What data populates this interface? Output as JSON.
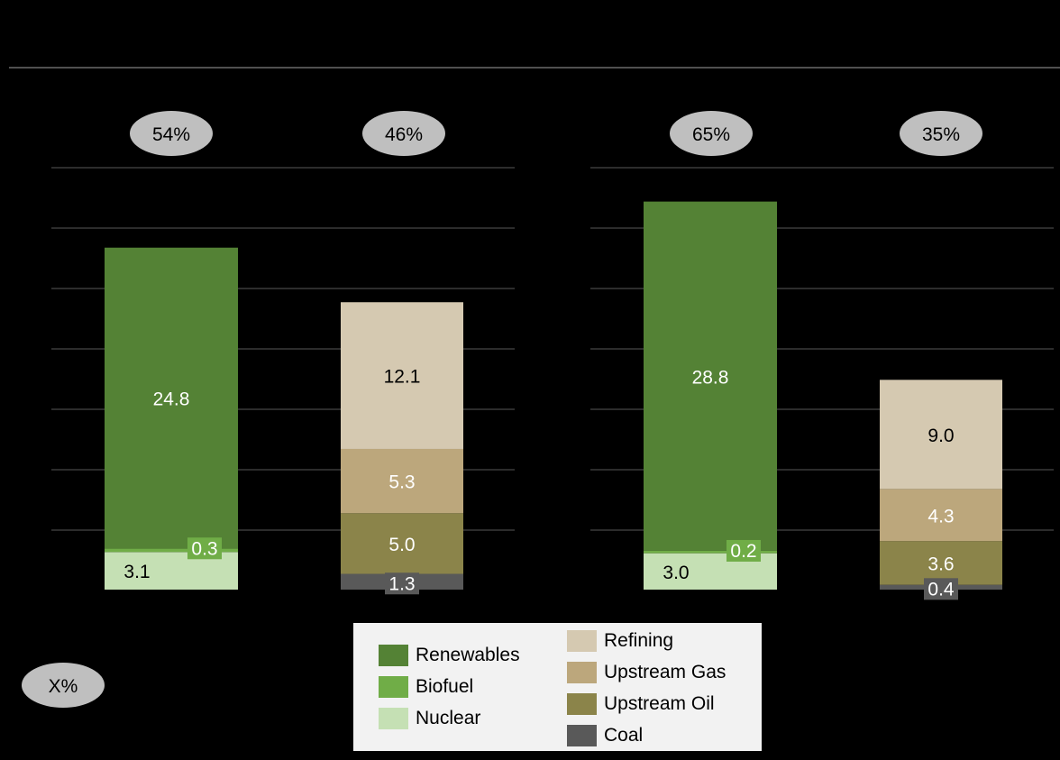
{
  "chart_data": {
    "type": "bar",
    "stacked": true,
    "grid": true,
    "legend_position": "bottom",
    "groups": [
      {
        "share_labels": [
          "54%",
          "46%"
        ]
      },
      {
        "share_labels": [
          "65%",
          "35%"
        ]
      }
    ],
    "bars": [
      {
        "group": 0,
        "segments": [
          {
            "series": "Nuclear",
            "value": 3.1,
            "label": "3.1"
          },
          {
            "series": "Biofuel",
            "value": 0.3,
            "label": "0.3"
          },
          {
            "series": "Renewables",
            "value": 24.8,
            "label": "24.8"
          }
        ]
      },
      {
        "group": 0,
        "segments": [
          {
            "series": "Coal",
            "value": 1.3,
            "label": "1.3"
          },
          {
            "series": "Upstream Oil",
            "value": 5.0,
            "label": "5.0"
          },
          {
            "series": "Upstream Gas",
            "value": 5.3,
            "label": "5.3"
          },
          {
            "series": "Refining",
            "value": 12.1,
            "label": "12.1"
          }
        ]
      },
      {
        "group": 1,
        "segments": [
          {
            "series": "Nuclear",
            "value": 3.0,
            "label": "3.0"
          },
          {
            "series": "Biofuel",
            "value": 0.2,
            "label": "0.2"
          },
          {
            "series": "Renewables",
            "value": 28.8,
            "label": "28.8"
          }
        ]
      },
      {
        "group": 1,
        "segments": [
          {
            "series": "Coal",
            "value": 0.4,
            "label": "0.4"
          },
          {
            "series": "Upstream Oil",
            "value": 3.6,
            "label": "3.6"
          },
          {
            "series": "Upstream Gas",
            "value": 4.3,
            "label": "4.3"
          },
          {
            "series": "Refining",
            "value": 9.0,
            "label": "9.0"
          }
        ]
      }
    ],
    "legend": [
      {
        "name": "Renewables",
        "color": "#548235"
      },
      {
        "name": "Biofuel",
        "color": "#70ad47"
      },
      {
        "name": "Nuclear",
        "color": "#c5e0b4"
      },
      {
        "name": "Refining",
        "color": "#d5c9b1"
      },
      {
        "name": "Upstream Gas",
        "color": "#bca77c"
      },
      {
        "name": "Upstream Oil",
        "color": "#8b844a"
      },
      {
        "name": "Coal",
        "color": "#595959"
      }
    ],
    "key_label": "X%"
  }
}
